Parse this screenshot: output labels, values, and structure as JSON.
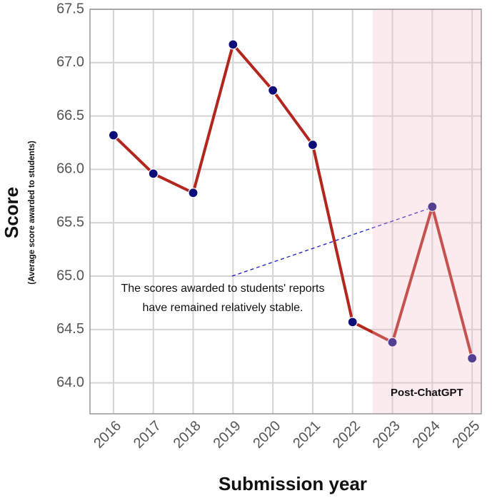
{
  "chart_data": {
    "type": "line",
    "x_label": "Submission year",
    "y_label": "Score",
    "y_sublabel": "(Average score awarded to students)",
    "x": [
      2016,
      2017,
      2018,
      2019,
      2020,
      2021,
      2022,
      2023,
      2024,
      2025
    ],
    "series": [
      {
        "name": "Score",
        "color": "#b3261e",
        "marker_color": "#0d0d7a",
        "values": [
          66.32,
          65.96,
          65.78,
          67.17,
          66.74,
          66.23,
          64.57,
          64.38,
          65.65,
          64.23
        ]
      }
    ],
    "xlim": [
      2015.41,
      2025.23
    ],
    "xticks": [
      2016,
      2017,
      2018,
      2019,
      2020,
      2021,
      2022,
      2023,
      2024,
      2025
    ],
    "ylim": [
      63.71,
      67.5
    ],
    "yticks": [
      {
        "value": 64,
        "label": "64.0"
      },
      64.5,
      {
        "value": 65,
        "label": "65.0"
      },
      65.5,
      {
        "value": 66,
        "label": "66.0"
      },
      66.5,
      {
        "value": 67,
        "label": "67.0"
      },
      67.5
    ],
    "grid": true,
    "highlight": {
      "label": "Post-ChatGPT",
      "start": 2022.5,
      "color": "#f2b8c8"
    },
    "annotation": {
      "lines": [
        "The scores awarded to students' reports",
        "have remained relatively stable."
      ],
      "arrow_to": 8
    }
  }
}
